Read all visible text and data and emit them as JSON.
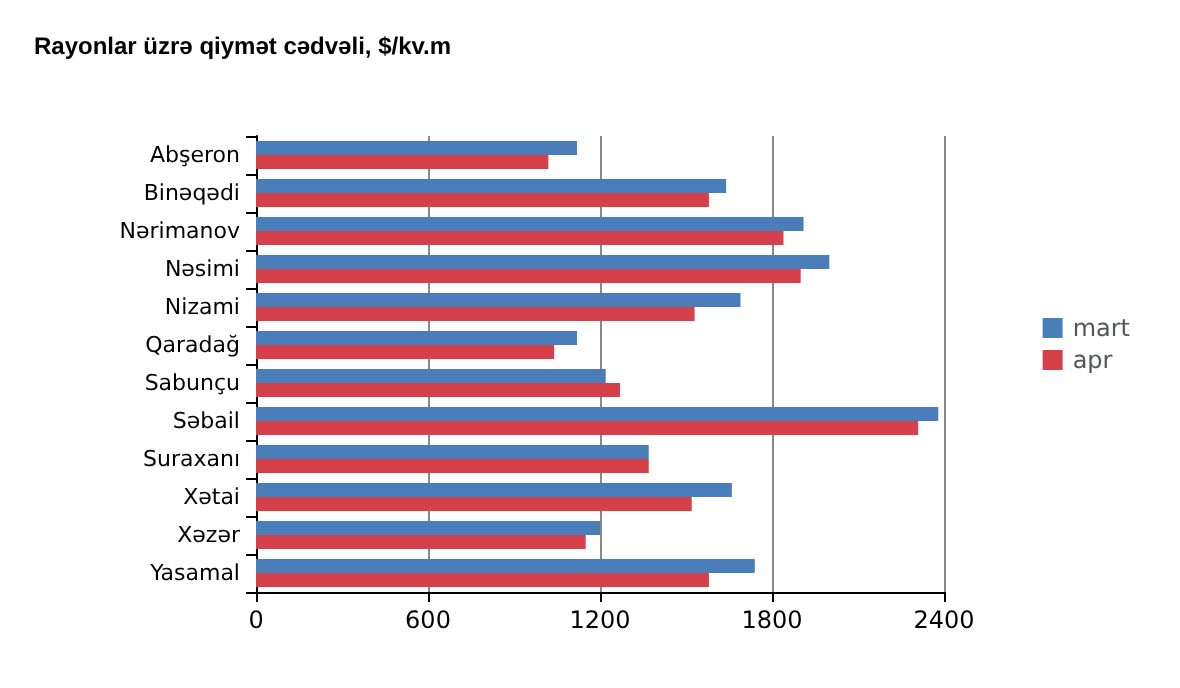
{
  "chart_data": {
    "type": "bar",
    "orientation": "horizontal",
    "title": "Rayonlar üzrə qiymət cədvəli, $/kv.m",
    "categories": [
      "Abşeron",
      "Binəqədi",
      "Nərimanov",
      "Nəsimi",
      "Nizami",
      "Qaradağ",
      "Sabunçu",
      "Səbail",
      "Suraxanı",
      "Xətai",
      "Xəzər",
      "Yasamal"
    ],
    "series": [
      {
        "name": "mart",
        "color": "#4a7ebb",
        "values": [
          1120,
          1640,
          1910,
          2000,
          1690,
          1120,
          1220,
          2380,
          1370,
          1660,
          1200,
          1740
        ]
      },
      {
        "name": "apr",
        "color": "#d6404a",
        "values": [
          1020,
          1580,
          1840,
          1900,
          1530,
          1040,
          1270,
          2310,
          1370,
          1520,
          1150,
          1580
        ]
      }
    ],
    "xlim": [
      0,
      2400
    ],
    "xticks": [
      0,
      600,
      1200,
      1800,
      2400
    ],
    "grid": "x",
    "legend": "right"
  }
}
